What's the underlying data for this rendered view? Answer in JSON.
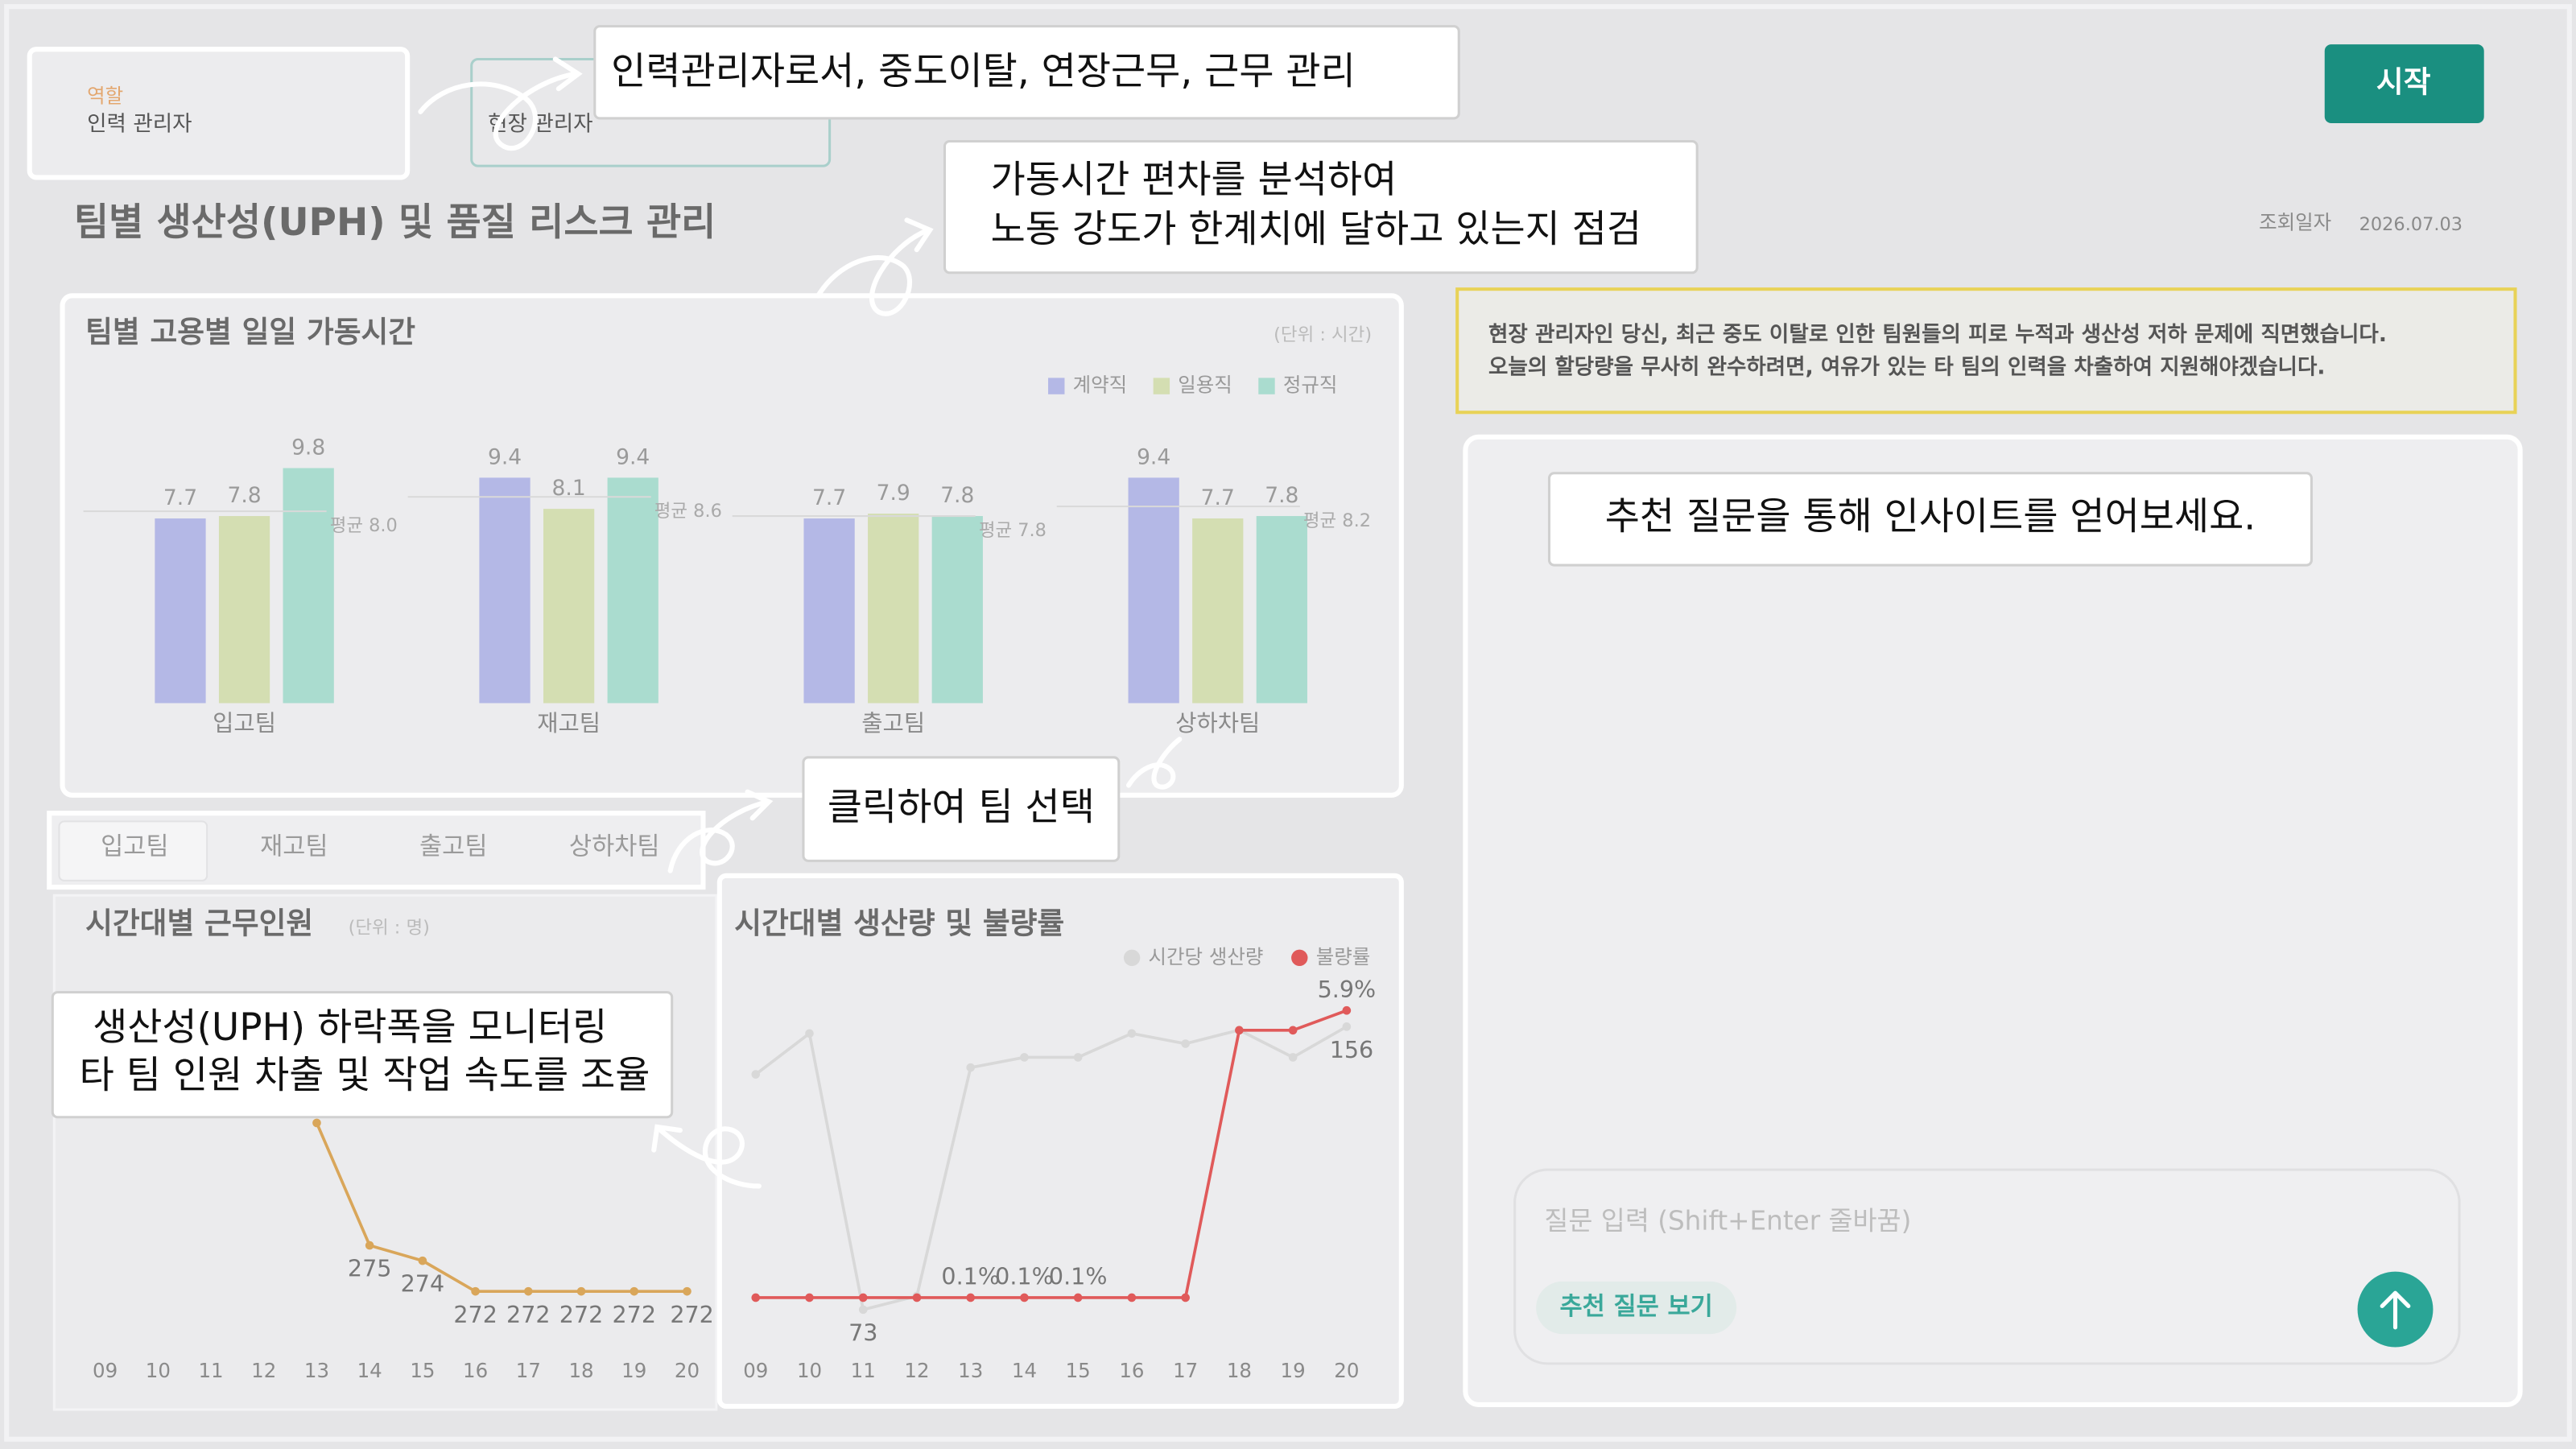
{
  "role_cards": [
    {
      "label": "역할",
      "value": "인력 관리자"
    },
    {
      "value": "현장 관리자"
    }
  ],
  "title": "팀별 생산성(UPH) 및 품질 리스크 관리",
  "start_button": "시작",
  "query_date": {
    "label": "조회일자",
    "value": "2026.07.03"
  },
  "notice": [
    "현장 관리자인 당신, 최근 중도 이탈로 인한 팀원들의 피로 누적과 생산성 저하 문제에 직면했습니다.",
    "오늘의 할당량을 무사히 완수하려면, 여유가 있는 타 팀의 인력을 차출하여 지원해야겠습니다."
  ],
  "callouts": [
    [
      "인력관리자로서, 중도이탈, 연장근무, 근무 관리"
    ],
    [
      "가동시간 편차를 분석하여",
      "노동 강도가 한계치에 달하고 있는지 점검"
    ],
    [
      "추천 질문을 통해 인사이트를 얻어보세요."
    ],
    [
      "클릭하여 팀 선택"
    ],
    [
      "생산성(UPH) 하락폭을 모니터링",
      "타 팀 인원 차출 및 작업 속도를 조율"
    ]
  ],
  "tabs": [
    "입고팀",
    "재고팀",
    "출고팀",
    "상하차팀"
  ],
  "chat": {
    "placeholder": "질문 입력 (Shift+Enter 줄바꿈)",
    "suggest_button": "추천 질문 보기"
  },
  "chart_data": [
    {
      "type": "bar",
      "title": "팀별 고용별 일일 가동시간",
      "unit": "(단위 : 시간)",
      "categories": [
        "입고팀",
        "재고팀",
        "출고팀",
        "상하차팀"
      ],
      "series": [
        {
          "name": "계약직",
          "color": "#b4b8e6",
          "values": [
            7.7,
            9.4,
            7.7,
            9.4
          ]
        },
        {
          "name": "일용직",
          "color": "#d4deb2",
          "values": [
            7.8,
            8.1,
            7.9,
            7.7
          ]
        },
        {
          "name": "정규직",
          "color": "#aadccf",
          "values": [
            9.8,
            9.4,
            7.8,
            7.8
          ]
        }
      ],
      "averages": [
        8.0,
        8.6,
        7.8,
        8.2
      ],
      "average_labels": [
        "평균 8.0",
        "평균 8.6",
        "평균 7.8",
        "평균 8.2"
      ],
      "ylim": [
        0,
        10
      ]
    },
    {
      "type": "line",
      "title": "시간대별 근무인원",
      "unit": "(단위 : 명)",
      "categories": [
        "09",
        "10",
        "11",
        "12",
        "13",
        "14",
        "15",
        "16",
        "17",
        "18",
        "19",
        "20"
      ],
      "series": [
        {
          "color": "#d9a65a",
          "values": [
            null,
            null,
            null,
            null,
            283,
            275,
            274,
            272,
            272,
            272,
            272,
            272
          ],
          "value_labels": [
            null,
            null,
            null,
            null,
            null,
            "275",
            "274",
            "272",
            "272",
            "272",
            "272",
            "272"
          ]
        }
      ],
      "ylim": [
        269,
        294
      ]
    },
    {
      "type": "line",
      "title": "시간대별 생산량 및 불량률",
      "categories": [
        "09",
        "10",
        "11",
        "12",
        "13",
        "14",
        "15",
        "16",
        "17",
        "18",
        "19",
        "20"
      ],
      "series": [
        {
          "name": "시간당 생산량",
          "color": "#d8d8d8",
          "values": [
            142,
            154,
            73,
            77,
            144,
            147,
            147,
            154,
            151,
            155,
            147,
            156
          ],
          "value_labels": [
            null,
            null,
            "73",
            null,
            null,
            null,
            null,
            null,
            null,
            null,
            null,
            "156"
          ]
        },
        {
          "name": "불량률",
          "color": "#e05a5a",
          "axis": "y2",
          "values": [
            0.1,
            0.1,
            0.1,
            0.1,
            0.1,
            0.1,
            0.1,
            0.1,
            0.1,
            5.5,
            5.5,
            5.9
          ],
          "value_labels": [
            null,
            null,
            null,
            null,
            "0.1%",
            "0.1%",
            "0.1%",
            null,
            null,
            null,
            null,
            "5.9%"
          ]
        }
      ],
      "ylim": [
        62,
        168
      ],
      "y2lim": [
        -0.9,
        6.4
      ]
    }
  ]
}
